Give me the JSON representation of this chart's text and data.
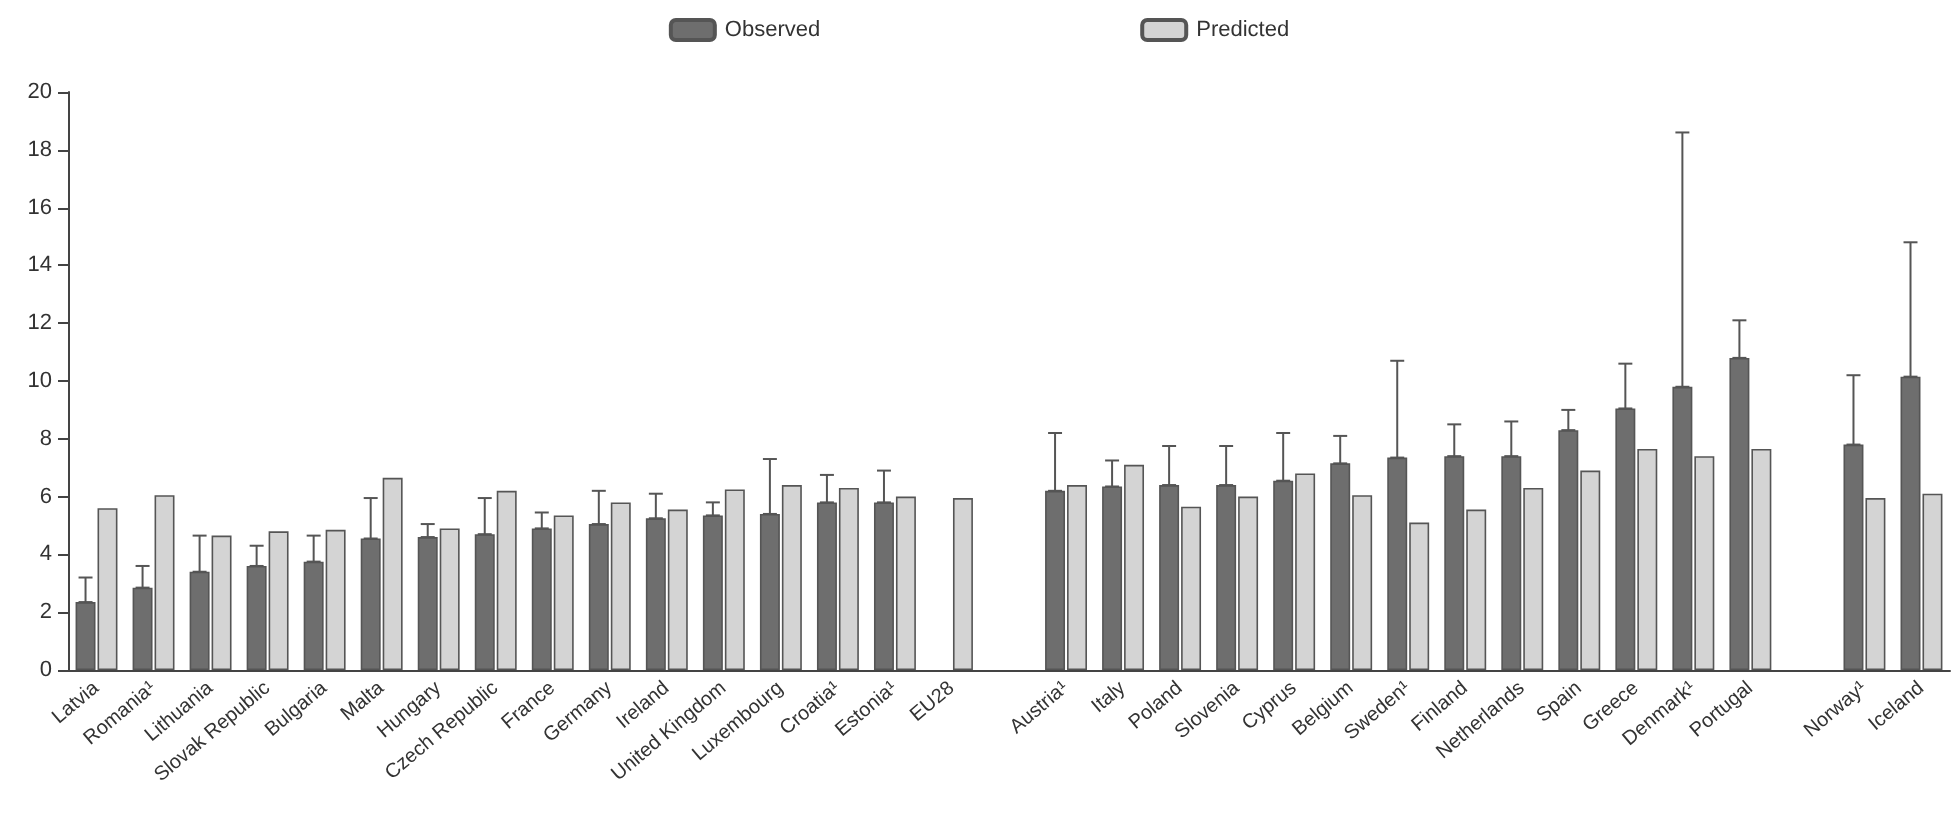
{
  "chart_data": {
    "type": "bar",
    "categories": [
      "Latvia",
      "Romania¹",
      "Lithuania",
      "Slovak Republic",
      "Bulgaria",
      "Malta",
      "Hungary",
      "Czech Republic",
      "France",
      "Germany",
      "Ireland",
      "United Kingdom",
      "Luxembourg",
      "Croatia¹",
      "Estonia¹",
      "EU28",
      null,
      "Austria¹",
      "Italy",
      "Poland",
      "Slovenia",
      "Cyprus",
      "Belgium",
      "Sweden¹",
      "Finland",
      "Netherlands",
      "Spain",
      "Greece",
      "Denmark¹",
      "Portugal",
      null,
      "Norway¹",
      "Iceland"
    ],
    "series": [
      {
        "name": "Observed",
        "color": "#6e6e6e",
        "values": [
          2.35,
          2.85,
          3.4,
          3.6,
          3.75,
          4.55,
          4.6,
          4.7,
          4.9,
          5.05,
          5.25,
          5.35,
          5.4,
          5.8,
          5.8,
          null,
          null,
          6.2,
          6.35,
          6.4,
          6.4,
          6.55,
          7.15,
          7.35,
          7.4,
          7.4,
          8.3,
          9.05,
          9.8,
          10.8,
          null,
          7.8,
          10.15
        ],
        "errors": [
          [
            2.35,
            3.2
          ],
          [
            2.85,
            3.6
          ],
          [
            3.4,
            4.65
          ],
          [
            3.6,
            4.3
          ],
          [
            3.75,
            4.65
          ],
          [
            4.55,
            5.95
          ],
          [
            4.6,
            5.05
          ],
          [
            4.7,
            5.95
          ],
          [
            4.9,
            5.45
          ],
          [
            5.05,
            6.2
          ],
          [
            5.25,
            6.1
          ],
          [
            5.35,
            5.8
          ],
          [
            5.4,
            7.3
          ],
          [
            5.8,
            6.75
          ],
          [
            5.8,
            6.9
          ],
          null,
          null,
          [
            6.2,
            8.2
          ],
          [
            6.35,
            7.25
          ],
          [
            6.4,
            7.75
          ],
          [
            6.4,
            7.75
          ],
          [
            6.55,
            8.2
          ],
          [
            7.15,
            8.1
          ],
          [
            7.35,
            10.7
          ],
          [
            7.4,
            8.5
          ],
          [
            7.4,
            8.6
          ],
          [
            8.3,
            9.0
          ],
          [
            9.05,
            10.6
          ],
          [
            9.8,
            18.6
          ],
          [
            10.8,
            12.1
          ],
          null,
          [
            7.8,
            10.2
          ],
          [
            10.15,
            14.8
          ]
        ]
      },
      {
        "name": "Predicted",
        "color": "#d4d4d4",
        "values": [
          5.6,
          6.05,
          4.65,
          4.8,
          4.85,
          6.65,
          4.9,
          6.2,
          5.35,
          5.8,
          5.55,
          6.25,
          6.4,
          6.3,
          6.0,
          5.95,
          null,
          6.4,
          7.1,
          5.65,
          6.0,
          6.8,
          6.05,
          5.1,
          5.55,
          6.3,
          6.9,
          7.65,
          7.4,
          7.65,
          null,
          5.95,
          6.1
        ]
      }
    ],
    "ylim": [
      0,
      20
    ],
    "yticks": [
      0,
      2,
      4,
      6,
      8,
      10,
      12,
      14,
      16,
      18,
      20
    ],
    "grid": false,
    "legend": "top"
  }
}
